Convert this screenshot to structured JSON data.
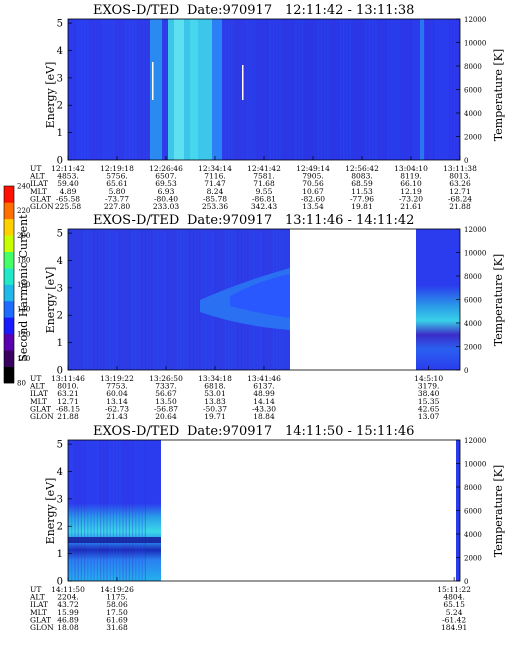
{
  "colorbar": {
    "label": "Second Harmonic Current",
    "ticks": [
      "80",
      "100",
      "120",
      "140",
      "160",
      "180",
      "200",
      "220",
      "240"
    ],
    "colors": [
      "#000000",
      "#3a0060",
      "#5a00b0",
      "#1a1aff",
      "#1e6cff",
      "#1fb8e8",
      "#20e8c8",
      "#44ff66",
      "#c8ff00",
      "#ffd000",
      "#ff7000",
      "#ff1000"
    ]
  },
  "panels": [
    {
      "title": "EXOS-D/TED",
      "date": "Date:970917",
      "time_range": "12:11:42 - 13:11:38",
      "ylabel": "Energy [eV]",
      "y2label": "Temperature [K]",
      "yticks": [
        "0",
        "1",
        "2",
        "3",
        "4",
        "5"
      ],
      "y2ticks": [
        "0",
        "2000",
        "4000",
        "6000",
        "8000",
        "10000",
        "12000"
      ],
      "data_extent": [
        0,
        1
      ],
      "orbit": {
        "labels": [
          "UT",
          "ALT",
          "ILAT",
          "MLT",
          "GLAT",
          "GLON"
        ],
        "columns": [
          {
            "x": 0.0,
            "v": [
              "12:11:42",
              "4853.",
              "59.40",
              "4.89",
              "-65.58",
              "225.58"
            ]
          },
          {
            "x": 0.125,
            "v": [
              "12:19:18",
              "5756.",
              "65.61",
              "5.80",
              "-73.77",
              "227.80"
            ]
          },
          {
            "x": 0.25,
            "v": [
              "12:26:46",
              "6507.",
              "69.53",
              "6.93",
              "-80.40",
              "233.03"
            ]
          },
          {
            "x": 0.375,
            "v": [
              "12:34:14",
              "7116.",
              "71.47",
              "8.24",
              "-85.78",
              "253.36"
            ]
          },
          {
            "x": 0.5,
            "v": [
              "12:41:42",
              "7581.",
              "71.68",
              "9.55",
              "-86.81",
              "342.43"
            ]
          },
          {
            "x": 0.625,
            "v": [
              "12:49:14",
              "7905.",
              "70.56",
              "10.67",
              "-82.60",
              "13.54"
            ]
          },
          {
            "x": 0.75,
            "v": [
              "12:56:42",
              "8083.",
              "68.59",
              "11.53",
              "-77.96",
              "19.81"
            ]
          },
          {
            "x": 0.875,
            "v": [
              "13:04:10",
              "8119.",
              "66.10",
              "12.19",
              "-73.20",
              "21.61"
            ]
          },
          {
            "x": 1.0,
            "v": [
              "13:11:38",
              "8013.",
              "63.26",
              "12.71",
              "-68.24",
              "21.88"
            ]
          }
        ]
      }
    },
    {
      "title": "EXOS-D/TED",
      "date": "Date:970917",
      "time_range": "13:11:46 - 14:11:42",
      "ylabel": "Energy [eV]",
      "y2label": "Temperature [K]",
      "yticks": [
        "0",
        "1",
        "2",
        "3",
        "4",
        "5"
      ],
      "y2ticks": [
        "0",
        "2000",
        "4000",
        "6000",
        "8000",
        "10000",
        "12000"
      ],
      "data_extent": [
        0,
        0.55
      ],
      "orbit": {
        "labels": [
          "UT",
          "ALT",
          "ILAT",
          "MLT",
          "GLAT",
          "GLON"
        ],
        "columns": [
          {
            "x": 0.0,
            "v": [
              "13:11:46",
              "8010.",
              "63.21",
              "12.71",
              "-68.15",
              "21.88"
            ]
          },
          {
            "x": 0.125,
            "v": [
              "13:19:22",
              "7753.",
              "60.04",
              "13.14",
              "-62.73",
              "21.43"
            ]
          },
          {
            "x": 0.25,
            "v": [
              "13:26:50",
              "7337.",
              "56.67",
              "13.50",
              "-56.87",
              "20.64"
            ]
          },
          {
            "x": 0.375,
            "v": [
              "13:34:18",
              "6818.",
              "53.01",
              "13.83",
              "-50.37",
              "19.71"
            ]
          },
          {
            "x": 0.5,
            "v": [
              "13:41:46",
              "6137.",
              "48.99",
              "14.14",
              "-43.30",
              "18.84"
            ]
          },
          {
            "x": 0.92,
            "v": [
              "14:5:10",
              "3179.",
              "38.40",
              "15.35",
              "42.65",
              "13.07"
            ]
          }
        ]
      }
    },
    {
      "title": "EXOS-D/TED",
      "date": "Date:970917",
      "time_range": "14:11:50 - 15:11:46",
      "ylabel": "Energy [eV]",
      "y2label": "Temperature [K]",
      "yticks": [
        "0",
        "1",
        "2",
        "3",
        "4",
        "5"
      ],
      "y2ticks": [
        "0",
        "2000",
        "4000",
        "6000",
        "8000",
        "10000",
        "12000"
      ],
      "data_extent": [
        0,
        0.2
      ],
      "orbit": {
        "labels": [
          "UT",
          "ALT",
          "ILAT",
          "MLT",
          "GLAT",
          "GLON"
        ],
        "columns": [
          {
            "x": 0.0,
            "v": [
              "14:11:50",
              "2204.",
              "43.72",
              "15.99",
              "46.89",
              "18.08"
            ]
          },
          {
            "x": 0.125,
            "v": [
              "14:19:26",
              "1175.",
              "58.06",
              "17.50",
              "61.69",
              "31.68"
            ]
          },
          {
            "x": 0.985,
            "v": [
              "15:11:22",
              "4804.",
              "65.15",
              "5.24",
              "-61.42",
              "184.91"
            ]
          }
        ]
      }
    }
  ]
}
